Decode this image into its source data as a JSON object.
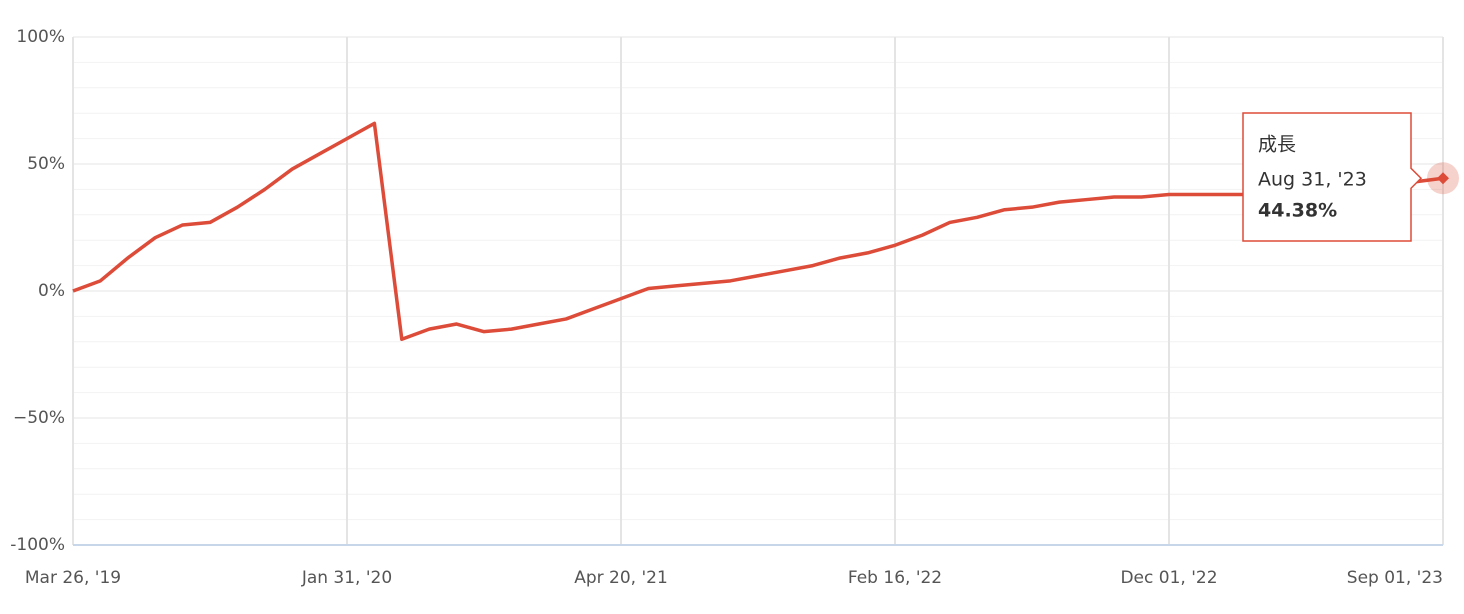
{
  "chart_data": {
    "type": "line",
    "categories": [
      "Mar 26, '19",
      null,
      null,
      null,
      null,
      null,
      null,
      null,
      null,
      null,
      "Jan 31, '20",
      null,
      null,
      null,
      null,
      null,
      null,
      null,
      null,
      null,
      "Apr 20, '21",
      null,
      null,
      null,
      null,
      null,
      null,
      null,
      null,
      null,
      "Feb 16, '22",
      null,
      null,
      null,
      null,
      null,
      null,
      null,
      null,
      null,
      "Dec 01, '22",
      null,
      null,
      null,
      null,
      null,
      null,
      null,
      null,
      null,
      "Sep 01, '23"
    ],
    "series": [
      {
        "name": "成長",
        "color": "#dd4b39",
        "values": [
          0,
          4,
          13,
          21,
          26,
          27,
          33,
          40,
          48,
          54,
          60,
          66,
          -19,
          -15,
          -13,
          -16,
          -15,
          -13,
          -11,
          -7,
          -3,
          1,
          2,
          3,
          4,
          6,
          8,
          10,
          13,
          15,
          18,
          22,
          27,
          29,
          32,
          33,
          35,
          36,
          37,
          37,
          38,
          38,
          38,
          38,
          38,
          39,
          39,
          40,
          41,
          43,
          44.38
        ],
        "value_labels": [
          null,
          null,
          null,
          null,
          null,
          null,
          null,
          null,
          null,
          null,
          null,
          null,
          null,
          null,
          null,
          null,
          null,
          null,
          null,
          null,
          null,
          null,
          null,
          null,
          null,
          null,
          null,
          null,
          null,
          null,
          null,
          null,
          null,
          null,
          null,
          null,
          null,
          null,
          null,
          null,
          null,
          null,
          null,
          null,
          null,
          null,
          null,
          null,
          null,
          null,
          "44.38%"
        ]
      }
    ],
    "tooltip": {
      "x": "Aug 31, '23"
    },
    "ylim": [
      -100,
      100
    ],
    "yticks": [
      {
        "value": 100,
        "label": "100%"
      },
      {
        "value": 50,
        "label": "50%"
      },
      {
        "value": 0,
        "label": "0%"
      },
      {
        "value": -50,
        "label": "−50%"
      },
      {
        "value": -100,
        "label": "-100%"
      }
    ],
    "minor_yticks": [
      90,
      80,
      70,
      60,
      40,
      30,
      20,
      10,
      -10,
      -20,
      -30,
      -40,
      -60,
      -70,
      -80,
      -90
    ],
    "grid": true
  }
}
